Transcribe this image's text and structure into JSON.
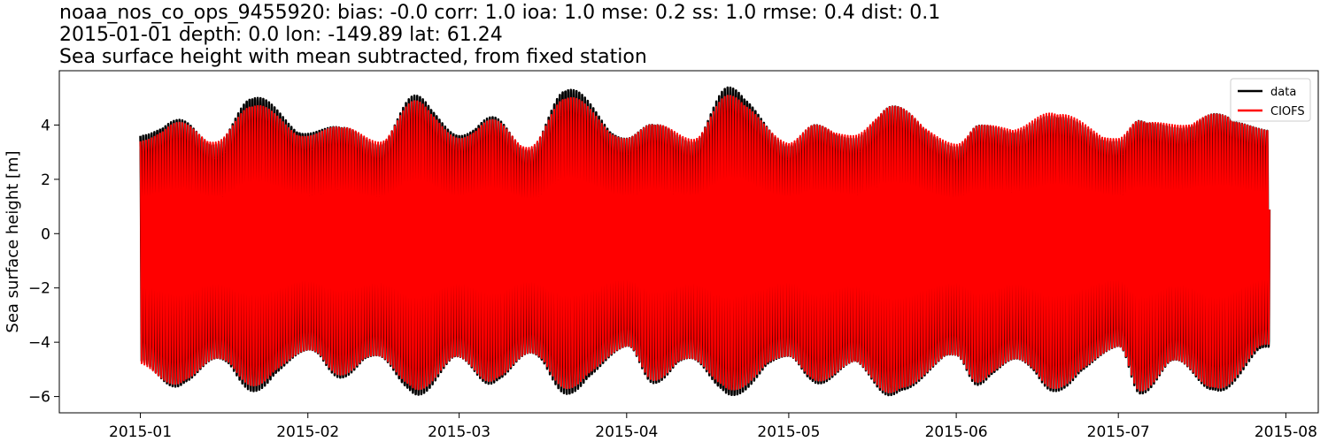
{
  "chart_data": {
    "type": "line",
    "title_lines": [
      "noaa_nos_co_ops_9455920: bias: -0.0  corr: 1.0  ioa: 1.0  mse: 0.2  ss: 1.0  rmse: 0.4  dist: 0.1",
      "2015-01-01 depth: 0.0 lon: -149.89 lat: 61.24",
      "Sea surface height with mean subtracted, from fixed station"
    ],
    "xlabel": "",
    "ylabel": "Sea surface height [m]",
    "xlim": [
      "2014-12-17",
      "2015-08-07"
    ],
    "ylim": [
      -6.6,
      6.0
    ],
    "x_ticks": [
      "2015-01",
      "2015-02",
      "2015-03",
      "2015-04",
      "2015-05",
      "2015-06",
      "2015-07",
      "2015-08"
    ],
    "y_ticks": [
      -6,
      -4,
      -2,
      0,
      2,
      4
    ],
    "y_tick_labels": [
      "−6",
      "−4",
      "−2",
      "0",
      "2",
      "4"
    ],
    "legend_position": "top-right",
    "x_range": [
      "2015-01-01",
      "2015-07-29"
    ],
    "series": [
      {
        "name": "data",
        "color": "#000000",
        "envelope_dates": [
          "2015-01-01",
          "2015-01-08",
          "2015-01-15",
          "2015-01-22",
          "2015-02-01",
          "2015-02-07",
          "2015-02-14",
          "2015-02-21",
          "2015-03-01",
          "2015-03-07",
          "2015-03-14",
          "2015-03-21",
          "2015-04-01",
          "2015-04-06",
          "2015-04-13",
          "2015-04-20",
          "2015-05-01",
          "2015-05-06",
          "2015-05-13",
          "2015-05-20",
          "2015-06-01",
          "2015-06-05",
          "2015-06-12",
          "2015-06-19",
          "2015-07-01",
          "2015-07-05",
          "2015-07-12",
          "2015-07-19",
          "2015-07-29"
        ],
        "high": [
          3.6,
          4.2,
          3.3,
          5.1,
          3.7,
          4.0,
          3.3,
          5.1,
          3.6,
          4.3,
          3.1,
          5.4,
          3.5,
          4.1,
          3.4,
          5.4,
          3.3,
          4.0,
          3.5,
          4.7,
          3.2,
          4.0,
          3.8,
          4.4,
          3.4,
          4.2,
          3.9,
          4.4,
          3.8
        ],
        "low": [
          -4.8,
          -5.7,
          -4.6,
          -5.8,
          -4.3,
          -5.3,
          -4.5,
          -6.0,
          -4.6,
          -5.6,
          -4.4,
          -5.9,
          -4.2,
          -5.5,
          -4.6,
          -6.0,
          -4.5,
          -5.6,
          -4.8,
          -6.0,
          -4.5,
          -5.6,
          -4.6,
          -5.8,
          -4.2,
          -5.9,
          -4.7,
          -5.9,
          -4.2
        ]
      },
      {
        "name": "CIOFS",
        "color": "#ff0000",
        "envelope_dates": [
          "2015-01-01",
          "2015-01-08",
          "2015-01-15",
          "2015-01-22",
          "2015-02-01",
          "2015-02-07",
          "2015-02-14",
          "2015-02-21",
          "2015-03-01",
          "2015-03-07",
          "2015-03-14",
          "2015-03-21",
          "2015-04-01",
          "2015-04-06",
          "2015-04-13",
          "2015-04-20",
          "2015-05-01",
          "2015-05-06",
          "2015-05-13",
          "2015-05-20",
          "2015-06-01",
          "2015-06-05",
          "2015-06-12",
          "2015-06-19",
          "2015-07-01",
          "2015-07-05",
          "2015-07-12",
          "2015-07-19",
          "2015-07-29"
        ],
        "high": [
          3.4,
          4.1,
          3.4,
          4.8,
          3.6,
          4.0,
          3.4,
          4.9,
          3.5,
          4.2,
          3.2,
          5.1,
          3.5,
          4.1,
          3.5,
          5.1,
          3.4,
          4.0,
          3.6,
          4.7,
          3.3,
          4.0,
          3.9,
          4.5,
          3.5,
          4.2,
          4.0,
          4.4,
          3.8
        ],
        "low": [
          -4.9,
          -5.6,
          -4.6,
          -5.6,
          -4.3,
          -5.2,
          -4.5,
          -5.8,
          -4.6,
          -5.5,
          -4.4,
          -5.7,
          -4.2,
          -5.4,
          -4.6,
          -5.8,
          -4.5,
          -5.5,
          -4.8,
          -5.9,
          -4.5,
          -5.5,
          -4.6,
          -5.7,
          -4.2,
          -5.8,
          -4.7,
          -5.8,
          -4.1
        ]
      }
    ]
  }
}
